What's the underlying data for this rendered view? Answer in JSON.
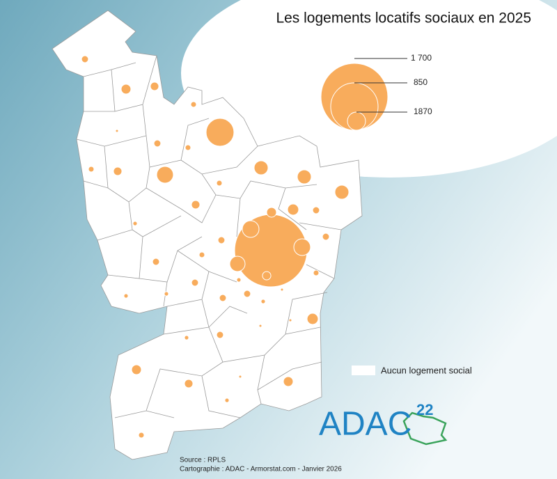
{
  "title": "Les logements locatifs sociaux en 2025",
  "legend": {
    "labels": [
      "1 700",
      "850",
      "1870"
    ],
    "no_housing_label": "Aucun logement social"
  },
  "circles": [
    18,
    36,
    27,
    12,
    3,
    295,
    18,
    12,
    12,
    27,
    106,
    74,
    74,
    74,
    12,
    27,
    36,
    47,
    18,
    7,
    106,
    1995,
    106,
    18,
    18,
    12,
    89,
    18,
    12,
    27,
    7,
    18,
    7,
    7,
    18,
    18,
    7,
    3,
    47,
    3,
    3,
    18,
    7,
    36,
    27,
    3,
    36,
    7,
    12
  ],
  "logo": {
    "text": "ADAC",
    "superscript": "22"
  },
  "source": "Source : RPLS",
  "credits": "Cartographie : ADAC - Armorstat.com - Janvier 2026"
}
